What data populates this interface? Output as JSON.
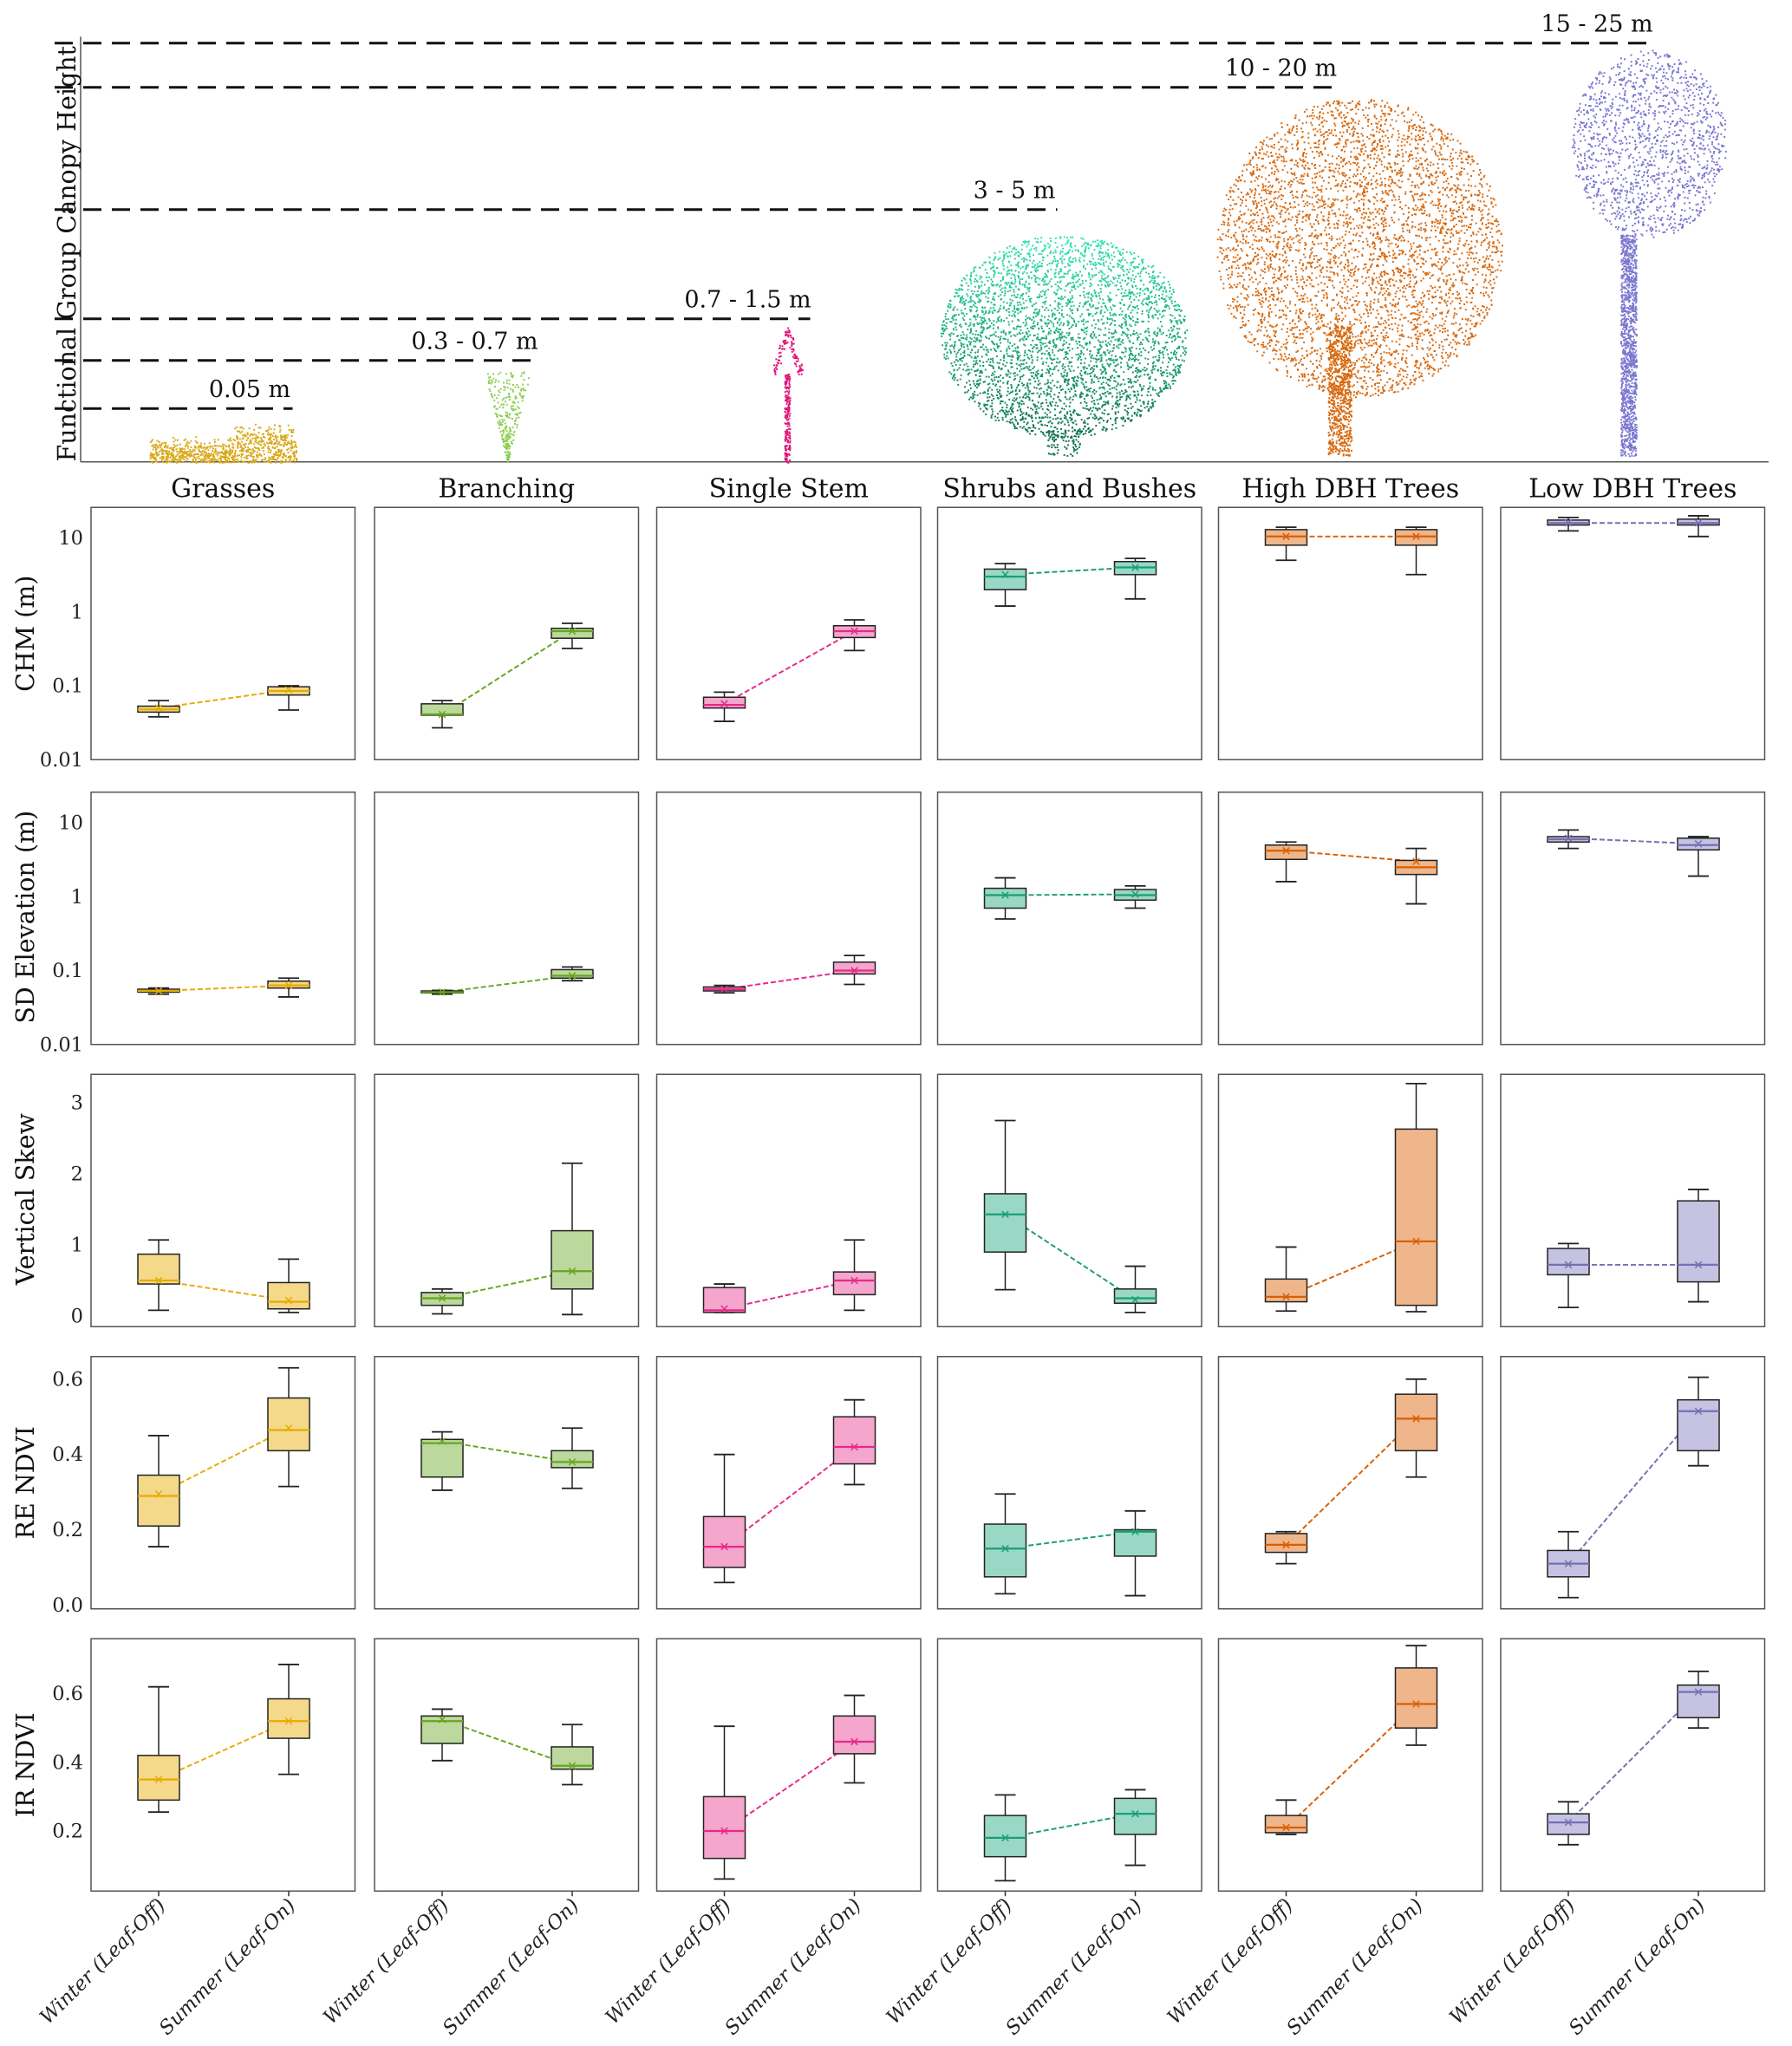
{
  "chart_data": {
    "type": "box",
    "title": "",
    "top_panel": {
      "ylabel": "Functional Group Canopy Height",
      "height_labels": [
        "0.05 m",
        "0.3 - 0.7 m",
        "0.7 - 1.5 m",
        "3 - 5 m",
        "10 - 20 m",
        "15 - 25 m"
      ]
    },
    "groups": [
      "Grasses",
      "Branching",
      "Single Stem",
      "Shrubs and Bushes",
      "High DBH Trees",
      "Low DBH Trees"
    ],
    "colors": [
      "#e6ab02",
      "#66a61e",
      "#e7298a",
      "#1b9e77",
      "#d95f02",
      "#7570b3"
    ],
    "fills": [
      "#f5d98a",
      "#bcd89c",
      "#f4a6cc",
      "#9ad8c6",
      "#efb68c",
      "#c5c2e2"
    ],
    "conditions": [
      "Winter (Leaf-Off)",
      "Summer (Leaf-On)"
    ],
    "stat_order": [
      "whisker_low",
      "q1",
      "median",
      "q3",
      "whisker_high",
      "mean"
    ],
    "metrics": [
      {
        "ylabel": "CHM (m)",
        "scale": "log",
        "ylim": [
          0.01,
          26
        ],
        "ticks": [
          0.01,
          0.1,
          1,
          10
        ],
        "tick_labels": [
          "0.01",
          "0.1",
          "1",
          "10"
        ],
        "data": [
          [
            [
              0.038,
              0.044,
              0.048,
              0.053,
              0.063,
              0.05
            ],
            [
              0.047,
              0.075,
              0.085,
              0.097,
              0.1,
              0.088
            ]
          ],
          [
            [
              0.027,
              0.04,
              0.041,
              0.057,
              0.063,
              0.041
            ],
            [
              0.32,
              0.44,
              0.55,
              0.6,
              0.7,
              0.55
            ]
          ],
          [
            [
              0.033,
              0.05,
              0.055,
              0.07,
              0.082,
              0.057
            ],
            [
              0.3,
              0.45,
              0.55,
              0.65,
              0.78,
              0.55
            ]
          ],
          [
            [
              1.2,
              2,
              3,
              3.8,
              4.5,
              3.2
            ],
            [
              1.5,
              3.2,
              4,
              4.8,
              5.3,
              4
            ]
          ],
          [
            [
              5,
              8,
              10.5,
              13,
              14,
              10.5
            ],
            [
              3.2,
              8,
              10.5,
              13,
              14,
              10.5
            ]
          ],
          [
            [
              12.5,
              15,
              16,
              17.5,
              19,
              16
            ],
            [
              10.5,
              15,
              16,
              18,
              20,
              16
            ]
          ]
        ]
      },
      {
        "ylabel": "SD Elevation (m)",
        "scale": "log",
        "ylim": [
          0.01,
          26
        ],
        "ticks": [
          0.01,
          0.1,
          1,
          10
        ],
        "tick_labels": [
          "0.01",
          "0.1",
          "1",
          "10"
        ],
        "data": [
          [
            [
              0.048,
              0.051,
              0.053,
              0.056,
              0.058,
              0.053
            ],
            [
              0.044,
              0.058,
              0.063,
              0.072,
              0.079,
              0.063
            ]
          ],
          [
            [
              0.048,
              0.05,
              0.051,
              0.053,
              0.054,
              0.051
            ],
            [
              0.073,
              0.079,
              0.085,
              0.103,
              0.112,
              0.085
            ]
          ],
          [
            [
              0.05,
              0.053,
              0.056,
              0.06,
              0.063,
              0.056
            ],
            [
              0.065,
              0.09,
              0.1,
              0.13,
              0.16,
              0.1
            ]
          ],
          [
            [
              0.5,
              0.7,
              1.05,
              1.3,
              1.8,
              1.05
            ],
            [
              0.7,
              0.9,
              1.05,
              1.25,
              1.4,
              1.08
            ]
          ],
          [
            [
              1.6,
              3.2,
              4.2,
              5,
              5.5,
              4.2
            ],
            [
              0.8,
              2,
              2.5,
              3.1,
              4.5,
              3
            ]
          ],
          [
            [
              4.5,
              5.5,
              6,
              6.5,
              8,
              6.2
            ],
            [
              1.9,
              4.3,
              5,
              6.2,
              6.5,
              5.2
            ]
          ]
        ]
      },
      {
        "ylabel": "Vertical Skew",
        "scale": "linear",
        "ylim": [
          -0.15,
          3.4
        ],
        "ticks": [
          0,
          1,
          2,
          3
        ],
        "tick_labels": [
          "0",
          "1",
          "2",
          "3"
        ],
        "data": [
          [
            [
              0.08,
              0.45,
              0.5,
              0.87,
              1.07,
              0.5
            ],
            [
              0.05,
              0.1,
              0.2,
              0.47,
              0.8,
              0.22
            ]
          ],
          [
            [
              0.03,
              0.15,
              0.25,
              0.33,
              0.38,
              0.25
            ],
            [
              0.02,
              0.38,
              0.63,
              1.2,
              2.15,
              0.63
            ]
          ],
          [
            [
              0.05,
              0.05,
              0.08,
              0.4,
              0.45,
              0.1
            ],
            [
              0.08,
              0.3,
              0.5,
              0.62,
              1.07,
              0.5
            ]
          ],
          [
            [
              0.37,
              0.9,
              1.43,
              1.72,
              2.75,
              1.43
            ],
            [
              0.05,
              0.18,
              0.25,
              0.38,
              0.7,
              0.23
            ]
          ],
          [
            [
              0.07,
              0.2,
              0.27,
              0.52,
              0.97,
              0.27
            ],
            [
              0.06,
              0.15,
              1.05,
              2.63,
              3.27,
              1.05
            ]
          ],
          [
            [
              0.12,
              0.58,
              0.72,
              0.95,
              1.02,
              0.72
            ],
            [
              0.2,
              0.48,
              0.72,
              1.62,
              1.78,
              0.72
            ]
          ]
        ]
      },
      {
        "ylabel": "RE NDVI",
        "scale": "linear",
        "ylim": [
          -0.01,
          0.66
        ],
        "ticks": [
          0,
          0.2,
          0.4,
          0.6
        ],
        "tick_labels": [
          "0.0",
          "0.2",
          "0.4",
          "0.6"
        ],
        "data": [
          [
            [
              0.155,
              0.21,
              0.29,
              0.345,
              0.45,
              0.295
            ],
            [
              0.315,
              0.41,
              0.465,
              0.55,
              0.63,
              0.47
            ]
          ],
          [
            [
              0.305,
              0.34,
              0.43,
              0.44,
              0.46,
              0.435
            ],
            [
              0.31,
              0.365,
              0.38,
              0.41,
              0.47,
              0.38
            ]
          ],
          [
            [
              0.06,
              0.1,
              0.155,
              0.235,
              0.4,
              0.155
            ],
            [
              0.32,
              0.375,
              0.42,
              0.5,
              0.545,
              0.42
            ]
          ],
          [
            [
              0.03,
              0.075,
              0.15,
              0.215,
              0.295,
              0.15
            ],
            [
              0.025,
              0.13,
              0.195,
              0.2,
              0.25,
              0.195
            ]
          ],
          [
            [
              0.11,
              0.14,
              0.16,
              0.19,
              0.195,
              0.16
            ],
            [
              0.34,
              0.41,
              0.495,
              0.56,
              0.6,
              0.495
            ]
          ],
          [
            [
              0.02,
              0.075,
              0.11,
              0.145,
              0.195,
              0.11
            ],
            [
              0.37,
              0.41,
              0.515,
              0.545,
              0.605,
              0.515
            ]
          ]
        ]
      },
      {
        "ylabel": "IR NDVI",
        "scale": "linear",
        "ylim": [
          0.025,
          0.76
        ],
        "ticks": [
          0.2,
          0.4,
          0.6
        ],
        "tick_labels": [
          "0.2",
          "0.4",
          "0.6"
        ],
        "data": [
          [
            [
              0.255,
              0.29,
              0.35,
              0.42,
              0.62,
              0.35
            ],
            [
              0.365,
              0.47,
              0.52,
              0.585,
              0.685,
              0.52
            ]
          ],
          [
            [
              0.405,
              0.455,
              0.52,
              0.535,
              0.555,
              0.525
            ],
            [
              0.335,
              0.38,
              0.39,
              0.445,
              0.51,
              0.39
            ]
          ],
          [
            [
              0.06,
              0.12,
              0.2,
              0.3,
              0.505,
              0.2
            ],
            [
              0.34,
              0.425,
              0.46,
              0.535,
              0.595,
              0.46
            ]
          ],
          [
            [
              0.055,
              0.125,
              0.18,
              0.245,
              0.305,
              0.18
            ],
            [
              0.1,
              0.19,
              0.25,
              0.295,
              0.32,
              0.25
            ]
          ],
          [
            [
              0.19,
              0.195,
              0.21,
              0.245,
              0.29,
              0.21
            ],
            [
              0.45,
              0.5,
              0.57,
              0.675,
              0.74,
              0.57
            ]
          ],
          [
            [
              0.16,
              0.19,
              0.225,
              0.25,
              0.285,
              0.225
            ],
            [
              0.5,
              0.53,
              0.605,
              0.625,
              0.665,
              0.605
            ]
          ]
        ]
      }
    ]
  }
}
